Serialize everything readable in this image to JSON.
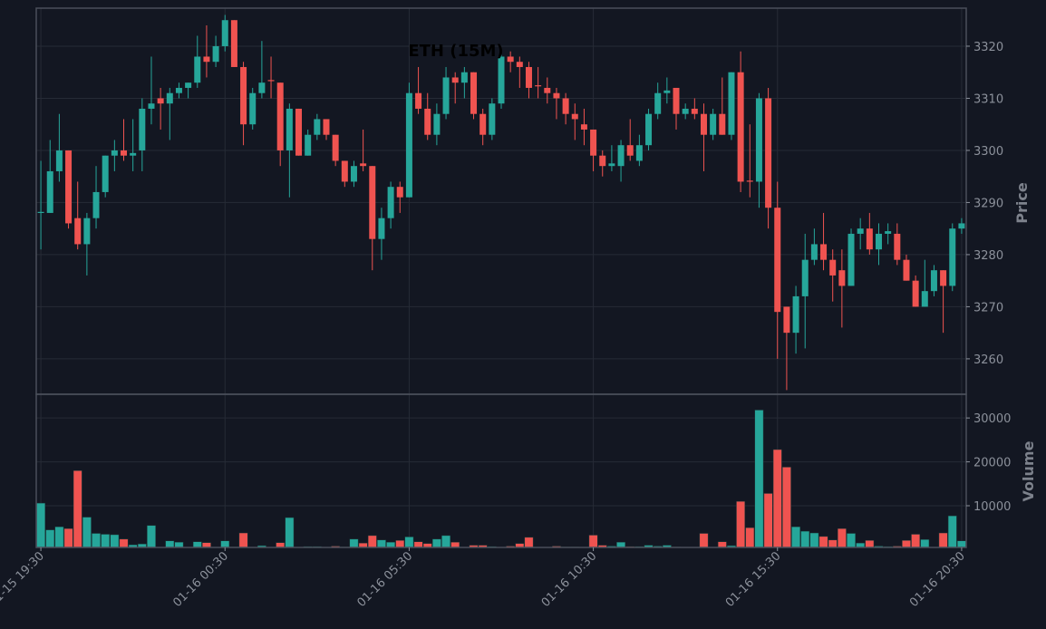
{
  "chart_data": {
    "type": "candlestick",
    "title": "ETH (15M)",
    "ylabel": "Price",
    "volume_label": "Volume",
    "up_color": "#26a69a",
    "down_color": "#ef5350",
    "grid": true,
    "categories": [
      "01-15 19:30",
      null,
      null,
      null,
      null,
      null,
      null,
      null,
      null,
      null,
      null,
      null,
      null,
      null,
      null,
      null,
      null,
      null,
      null,
      null,
      "01-16 00:30",
      null,
      null,
      null,
      null,
      null,
      null,
      null,
      null,
      null,
      null,
      null,
      null,
      null,
      null,
      null,
      null,
      null,
      null,
      null,
      "01-16 05:30",
      null,
      null,
      null,
      null,
      null,
      null,
      null,
      null,
      null,
      null,
      null,
      null,
      null,
      null,
      null,
      null,
      null,
      null,
      null,
      "01-16 10:30",
      null,
      null,
      null,
      null,
      null,
      null,
      null,
      null,
      null,
      null,
      null,
      null,
      null,
      null,
      null,
      null,
      null,
      null,
      null,
      "01-16 15:30",
      null,
      null,
      null,
      null,
      null,
      null,
      null,
      null,
      null,
      null,
      null,
      null,
      null,
      null,
      null,
      null,
      null,
      null,
      null,
      "01-16 20:30"
    ],
    "open": [
      3288,
      3288,
      3296,
      3300,
      3287,
      3282,
      3287,
      3292,
      3299,
      3300,
      3299,
      3300,
      3308,
      3310,
      3309,
      3311,
      3312,
      3313,
      3318,
      3317,
      3320,
      3325,
      3316,
      3305,
      3311,
      3313.5,
      3313,
      3300,
      3308,
      3299,
      3303,
      3306,
      3303,
      3298,
      3294,
      3297.5,
      3297,
      3283,
      3287,
      3293,
      3291,
      3311,
      3308,
      3303,
      3307,
      3314,
      3313,
      3315,
      3307,
      3303,
      3309,
      3318,
      3317,
      3316,
      3312.5,
      3312,
      3311,
      3310,
      3307,
      3305,
      3304,
      3299,
      3297,
      3297,
      3301,
      3298,
      3301,
      3307,
      3311,
      3312,
      3307,
      3308,
      3307,
      3303,
      3307,
      3303,
      3315,
      3294.2,
      3294,
      3310,
      3289,
      3270,
      3265,
      3272,
      3279,
      3282,
      3279,
      3277,
      3274,
      3284,
      3285,
      3281,
      3284,
      3284,
      3279,
      3275,
      3270,
      3273,
      3277,
      3274,
      3285
    ],
    "high": [
      3298,
      3302,
      3307,
      3300,
      3294,
      3288,
      3297,
      3299,
      3302,
      3306,
      3306,
      3310,
      3318,
      3312,
      3312,
      3313,
      3313,
      3322,
      3324,
      3322,
      3326,
      3325,
      3317,
      3312,
      3321,
      3318,
      3313,
      3309,
      3308,
      3304,
      3307,
      3306,
      3303,
      3298,
      3298,
      3304,
      3297,
      3289,
      3294,
      3294,
      3313,
      3316,
      3311,
      3309,
      3316,
      3315,
      3316,
      3315,
      3308,
      3310,
      3319,
      3319,
      3318,
      3317,
      3316,
      3314,
      3312,
      3311,
      3309,
      3308,
      3304,
      3300,
      3301,
      3302,
      3306,
      3303,
      3308,
      3313,
      3314,
      3312,
      3309,
      3310,
      3309,
      3308,
      3314,
      3315,
      3319,
      3305,
      3311,
      3312,
      3294,
      3270,
      3274,
      3284,
      3285,
      3288,
      3281,
      3281,
      3285,
      3287,
      3288,
      3286,
      3286,
      3286,
      3280,
      3276,
      3279,
      3278,
      3277,
      3286,
      3287
    ],
    "low": [
      3281,
      3288,
      3294,
      3285,
      3281,
      3276,
      3285,
      3291,
      3296,
      3298,
      3296,
      3296,
      3305,
      3304,
      3302,
      3310,
      3310,
      3312,
      3314,
      3316,
      3319,
      3316,
      3301,
      3304,
      3310,
      3310,
      3297,
      3291,
      3299,
      3299,
      3302,
      3302,
      3297,
      3293,
      3293,
      3296,
      3277,
      3279,
      3285,
      3288,
      3291,
      3307,
      3302,
      3301,
      3306,
      3309,
      3310,
      3306,
      3301,
      3302,
      3308,
      3315,
      3312,
      3310,
      3310,
      3309,
      3306,
      3305,
      3302,
      3301,
      3296,
      3295,
      3296,
      3294,
      3298,
      3297,
      3300,
      3306,
      3309,
      3304,
      3306,
      3306,
      3296,
      3302,
      3303,
      3302,
      3292,
      3291,
      3289,
      3285,
      3260,
      3254,
      3261,
      3262,
      3278,
      3277,
      3271,
      3266,
      3274,
      3281,
      3280,
      3278,
      3282,
      3278,
      3275,
      3270,
      3270,
      3272,
      3265,
      3273,
      3284
    ],
    "close": [
      3288.2,
      3296,
      3300,
      3286,
      3282,
      3287,
      3292,
      3299,
      3300,
      3299,
      3299.5,
      3308,
      3309,
      3309,
      3311,
      3312,
      3313,
      3318,
      3317,
      3320,
      3325,
      3316,
      3305,
      3311,
      3313,
      3313.3,
      3300,
      3308,
      3299,
      3303,
      3306,
      3303,
      3298,
      3294,
      3297,
      3297,
      3283,
      3287,
      3293,
      3291,
      3311,
      3308,
      3303,
      3307,
      3314,
      3313,
      3315,
      3307,
      3303,
      3309,
      3318,
      3317,
      3316,
      3312,
      3312.3,
      3311,
      3310,
      3307,
      3306,
      3304,
      3299,
      3297,
      3297.5,
      3301,
      3299,
      3301,
      3307,
      3311,
      3311.5,
      3307,
      3308,
      3307,
      3303,
      3307,
      3303,
      3315,
      3294,
      3294,
      3310,
      3289,
      3269,
      3265,
      3272,
      3279,
      3282,
      3279,
      3276,
      3274,
      3284,
      3285,
      3281,
      3284,
      3284.5,
      3279,
      3275,
      3270,
      3273,
      3277,
      3274,
      3285,
      3286
    ],
    "volume": [
      10600,
      4500,
      5200,
      4800,
      18000,
      7400,
      3700,
      3500,
      3400,
      2400,
      1100,
      1300,
      5500,
      400,
      2000,
      1700,
      500,
      1800,
      1600,
      400,
      2000,
      600,
      3800,
      500,
      900,
      300,
      1600,
      7300,
      500,
      700,
      700,
      300,
      800,
      600,
      2400,
      1500,
      3200,
      2200,
      1700,
      2100,
      2900,
      1800,
      1400,
      2400,
      3200,
      1700,
      300,
      1000,
      1000,
      700,
      500,
      800,
      1400,
      2800,
      400,
      200,
      800,
      600,
      600,
      200,
      3300,
      1000,
      800,
      1700,
      700,
      700,
      1000,
      800,
      1000,
      600,
      300,
      200,
      3700,
      300,
      1800,
      900,
      11000,
      5000,
      31800,
      12800,
      22800,
      18800,
      5200,
      4200,
      3800,
      3000,
      2200,
      4800,
      3700,
      1500,
      2100,
      800,
      700,
      800,
      2100,
      3500,
      2300,
      300,
      3800,
      7700,
      2000
    ],
    "ylim": [
      3253.2,
      3327.3
    ],
    "yticks": [
      3260,
      3270,
      3280,
      3290,
      3300,
      3310,
      3320
    ],
    "volume_ylim": [
      500,
      35400
    ],
    "volume_yticks": [
      10000,
      20000,
      30000
    ]
  }
}
